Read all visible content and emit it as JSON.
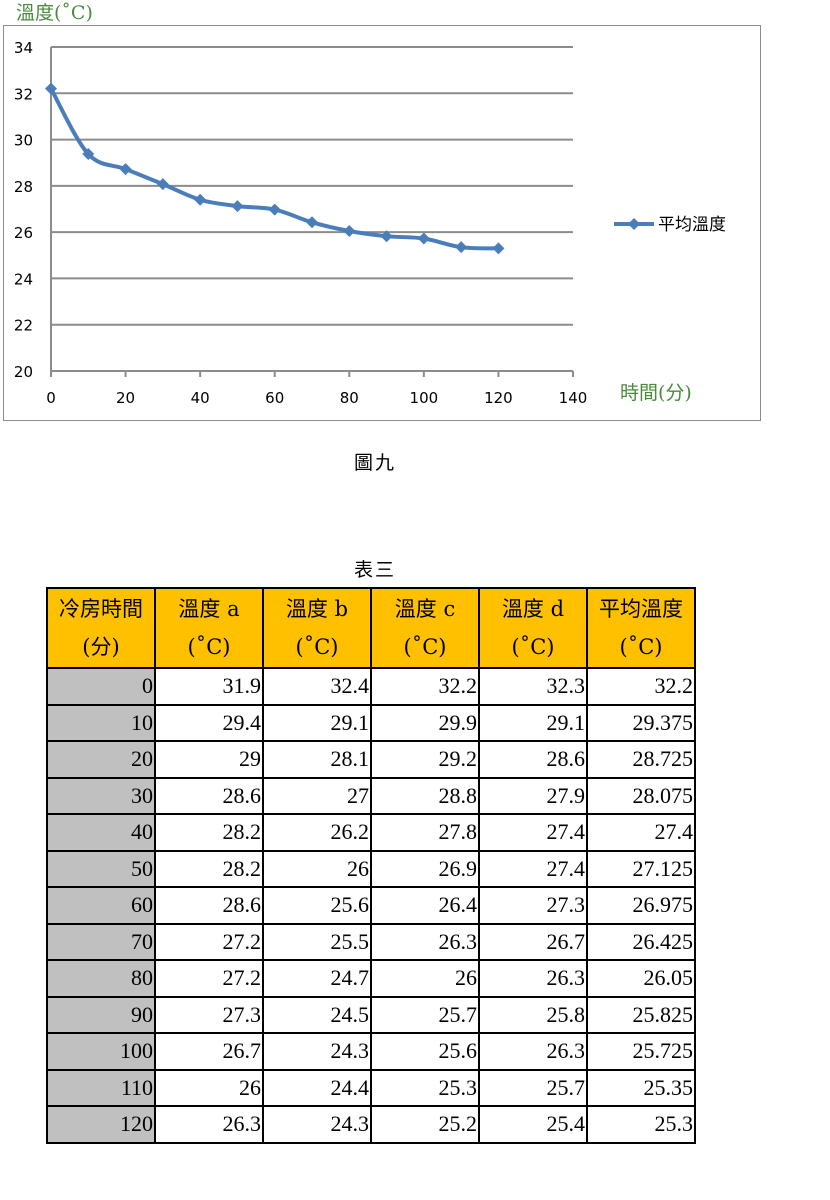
{
  "chart_data": {
    "type": "line",
    "ylabel": "溫度(˚C)",
    "xlabel": "時間(分)",
    "ylim": [
      20,
      34
    ],
    "xlim": [
      0,
      140
    ],
    "yticks": [
      "20",
      "22",
      "24",
      "26",
      "28",
      "30",
      "32",
      "34"
    ],
    "xticks": [
      "0",
      "20",
      "40",
      "60",
      "80",
      "100",
      "120",
      "140"
    ],
    "grid": true,
    "legend_position": "right",
    "series": [
      {
        "name": "平均溫度",
        "color": "#4a7ebb",
        "x": [
          0,
          10,
          20,
          30,
          40,
          50,
          60,
          70,
          80,
          90,
          100,
          110,
          120
        ],
        "values": [
          32.2,
          29.375,
          28.725,
          28.075,
          27.4,
          27.125,
          26.975,
          26.425,
          26.05,
          25.825,
          25.725,
          25.35,
          25.3
        ]
      }
    ]
  },
  "chart_caption": "圖九",
  "table": {
    "caption": "表三",
    "headers": [
      [
        "冷房時間",
        "(分)"
      ],
      [
        "溫度 a",
        "(˚C)"
      ],
      [
        "溫度 b",
        "(˚C)"
      ],
      [
        "溫度 c",
        "(˚C)"
      ],
      [
        "溫度 d",
        "(˚C)"
      ],
      [
        "平均溫度",
        "(˚C)"
      ]
    ],
    "rows": [
      [
        "0",
        "31.9",
        "32.4",
        "32.2",
        "32.3",
        "32.2"
      ],
      [
        "10",
        "29.4",
        "29.1",
        "29.9",
        "29.1",
        "29.375"
      ],
      [
        "20",
        "29",
        "28.1",
        "29.2",
        "28.6",
        "28.725"
      ],
      [
        "30",
        "28.6",
        "27",
        "28.8",
        "27.9",
        "28.075"
      ],
      [
        "40",
        "28.2",
        "26.2",
        "27.8",
        "27.4",
        "27.4"
      ],
      [
        "50",
        "28.2",
        "26",
        "26.9",
        "27.4",
        "27.125"
      ],
      [
        "60",
        "28.6",
        "25.6",
        "26.4",
        "27.3",
        "26.975"
      ],
      [
        "70",
        "27.2",
        "25.5",
        "26.3",
        "26.7",
        "26.425"
      ],
      [
        "80",
        "27.2",
        "24.7",
        "26",
        "26.3",
        "26.05"
      ],
      [
        "90",
        "27.3",
        "24.5",
        "25.7",
        "25.8",
        "25.825"
      ],
      [
        "100",
        "26.7",
        "24.3",
        "25.6",
        "26.3",
        "25.725"
      ],
      [
        "110",
        "26",
        "24.4",
        "25.3",
        "25.7",
        "25.35"
      ],
      [
        "120",
        "26.3",
        "24.3",
        "25.2",
        "25.4",
        "25.3"
      ]
    ]
  }
}
